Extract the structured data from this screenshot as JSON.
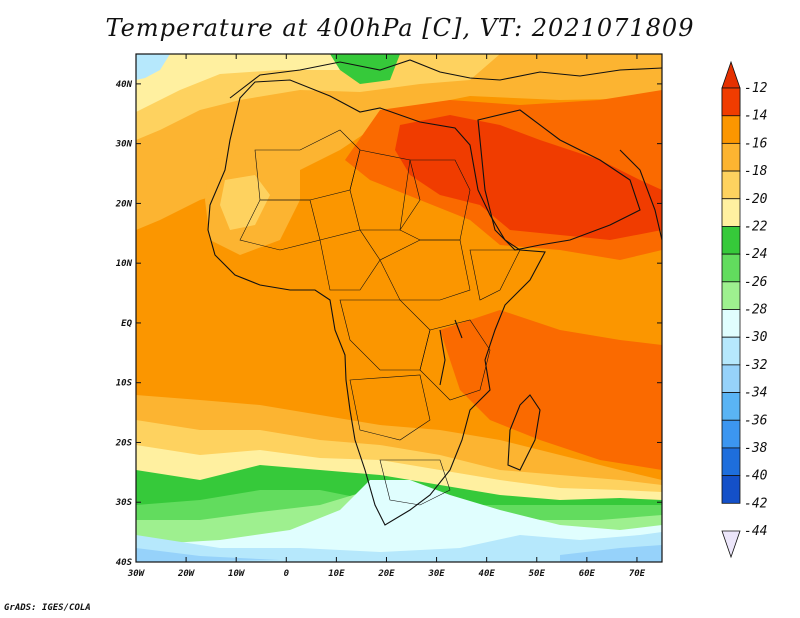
{
  "title": "Temperature at 400hPa [C], VT: 2021071809",
  "credit": "GrADS: IGES/COLA",
  "map": {
    "lon_range": [
      -30,
      75
    ],
    "lat_range": [
      -40,
      45
    ],
    "lat_ticks": [
      {
        "value": 40,
        "label": "40N"
      },
      {
        "value": 30,
        "label": "30N"
      },
      {
        "value": 20,
        "label": "20N"
      },
      {
        "value": 10,
        "label": "10N"
      },
      {
        "value": 0,
        "label": "EQ"
      },
      {
        "value": -10,
        "label": "10S"
      },
      {
        "value": -20,
        "label": "20S"
      },
      {
        "value": -30,
        "label": "30S"
      },
      {
        "value": -40,
        "label": "40S"
      }
    ],
    "lon_ticks": [
      {
        "value": -30,
        "label": "30W"
      },
      {
        "value": -20,
        "label": "20W"
      },
      {
        "value": -10,
        "label": "10W"
      },
      {
        "value": 0,
        "label": "0"
      },
      {
        "value": 10,
        "label": "10E"
      },
      {
        "value": 20,
        "label": "20E"
      },
      {
        "value": 30,
        "label": "30E"
      },
      {
        "value": 40,
        "label": "40E"
      },
      {
        "value": 50,
        "label": "50E"
      },
      {
        "value": 60,
        "label": "60E"
      },
      {
        "value": 70,
        "label": "70E"
      }
    ]
  },
  "colorbar": {
    "levels": [
      "-12",
      "-14",
      "-16",
      "-18",
      "-20",
      "-22",
      "-24",
      "-26",
      "-28",
      "-30",
      "-32",
      "-34",
      "-36",
      "-38",
      "-40",
      "-42",
      "-44"
    ],
    "colors": [
      "#f03c00",
      "#fa6a00",
      "#fb9600",
      "#fcb431",
      "#fed25f",
      "#fff0a0",
      "#36c93a",
      "#62dc5e",
      "#9ef08f",
      "#e0fefe",
      "#b6e8fc",
      "#96d2fa",
      "#5ab4f4",
      "#3c96f0",
      "#1e6edc",
      "#1450c8",
      "#0c2080"
    ],
    "top_arrow_color": "#e53000",
    "bottom_arrow_color": "#ece6fa"
  }
}
